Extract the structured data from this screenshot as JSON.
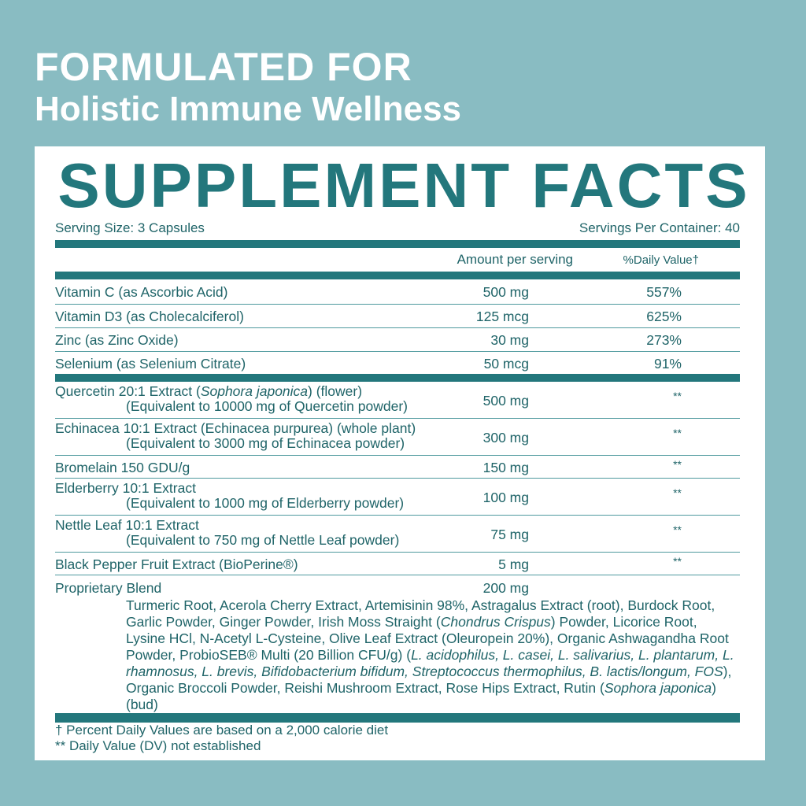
{
  "header": {
    "line1": "FORMULATED FOR",
    "line2": "Holistic Immune Wellness"
  },
  "facts": {
    "title": "SUPPLEMENT FACTS",
    "serving_size": "Serving Size: 3 Capsules",
    "servings_per_container": "Servings Per Container: 40",
    "columns": [
      "Amount per serving",
      "%Daily Value†"
    ],
    "vitamins": [
      {
        "name": "Vitamin C (as Ascorbic Acid)",
        "amount": "500 mg",
        "dv": "557%"
      },
      {
        "name": "Vitamin D3 (as Cholecalciferol)",
        "amount": "125 mcg",
        "dv": "625%"
      },
      {
        "name": "Zinc (as Zinc Oxide)",
        "amount": "30 mg",
        "dv": "273%"
      },
      {
        "name": "Selenium (as Selenium Citrate)",
        "amount": "50 mcg",
        "dv": "91%"
      }
    ],
    "extracts": [
      {
        "name": [
          {
            "text": "Quercetin 20:1 Extract (",
            "italic": false
          },
          {
            "text": "Sophora japonica",
            "italic": true
          },
          {
            "text": ") (flower)",
            "italic": false
          }
        ],
        "detail": "(Equivalent to 10000 mg of Quercetin powder)",
        "amount": "500 mg",
        "dv": "**"
      },
      {
        "name": "Echinacea 10:1 Extract (Echinacea purpurea) (whole plant)",
        "detail": "(Equivalent to 3000 mg of Echinacea powder)",
        "amount": "300 mg",
        "dv": "**"
      },
      {
        "name": "Bromelain 150 GDU/g",
        "amount": "150 mg",
        "dv": "**"
      },
      {
        "name": "Elderberry 10:1 Extract",
        "detail": "(Equivalent to 1000 mg of Elderberry powder)",
        "amount": "100 mg",
        "dv": "**"
      },
      {
        "name": "Nettle Leaf 10:1 Extract",
        "detail": "(Equivalent to 750 mg of Nettle Leaf powder)",
        "amount": "75 mg",
        "dv": "**"
      },
      {
        "name": "Black Pepper Fruit Extract (BioPerine®)",
        "amount": "5 mg",
        "dv": "**"
      }
    ],
    "blend": {
      "name": "Proprietary Blend",
      "amount": "200 mg",
      "ingredients": [
        {
          "text": "Turmeric Root, Acerola Cherry Extract, Artemisinin 98%, Astragalus Extract (root), Burdock Root, Garlic Powder, Ginger Powder, Irish Moss Straight (",
          "italic": false
        },
        {
          "text": "Chondrus Crispus",
          "italic": true
        },
        {
          "text": ") Powder, Licorice Root, Lysine HCl, N-Acetyl L-Cysteine, Olive Leaf Extract (Oleuropein 20%), Organic Ashwagandha Root Powder, ProbioSEB® Multi (20 Billion CFU/g) (",
          "italic": false
        },
        {
          "text": "L. acidophilus, L. casei, L. salivarius, L. plantarum, L. rhamnosus, L. brevis, Bifidobacterium bifidum, Streptococcus thermophilus, B. lactis/longum, FOS",
          "italic": true
        },
        {
          "text": "), Organic Broccoli Powder, Reishi Mushroom Extract, Rose Hips Extract, Rutin (",
          "italic": false
        },
        {
          "text": "Sophora japonica",
          "italic": true
        },
        {
          "text": ") (bud)",
          "italic": false
        }
      ]
    },
    "footnotes": [
      "† Percent Daily Values are based on a 2,000 calorie diet",
      "** Daily Value (DV) not established"
    ]
  }
}
